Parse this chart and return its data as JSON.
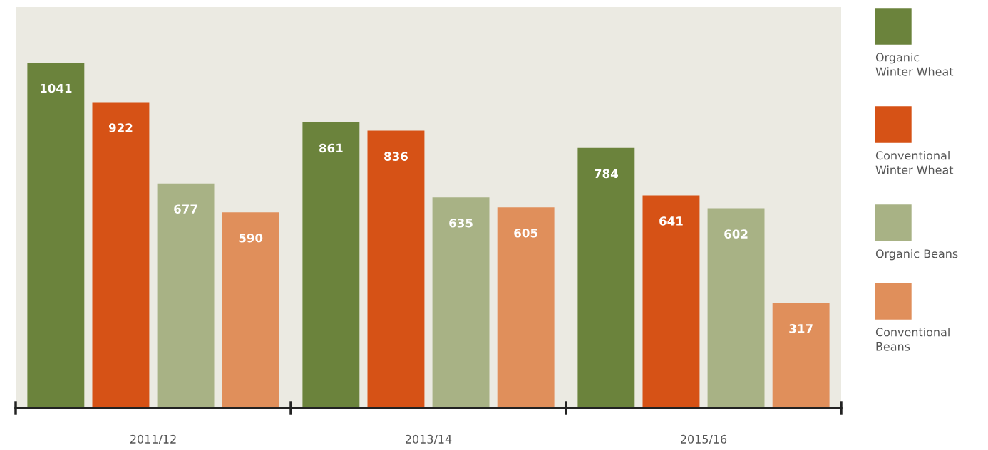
{
  "chart_data": {
    "type": "bar",
    "categories": [
      "2011/12",
      "2013/14",
      "2015/16"
    ],
    "series": [
      {
        "name": "Organic\nWinter Wheat",
        "color": "#6b833c",
        "values": [
          1041,
          861,
          784
        ]
      },
      {
        "name": "Conventional\nWinter Wheat",
        "color": "#d65216",
        "values": [
          922,
          836,
          641
        ]
      },
      {
        "name": "Organic Beans",
        "color": "#a8b285",
        "values": [
          677,
          635,
          602
        ]
      },
      {
        "name": "Conventional\nBeans",
        "color": "#e08f5b",
        "values": [
          590,
          605,
          317
        ]
      }
    ],
    "data_labels": true,
    "legend": "right",
    "grid": false
  }
}
